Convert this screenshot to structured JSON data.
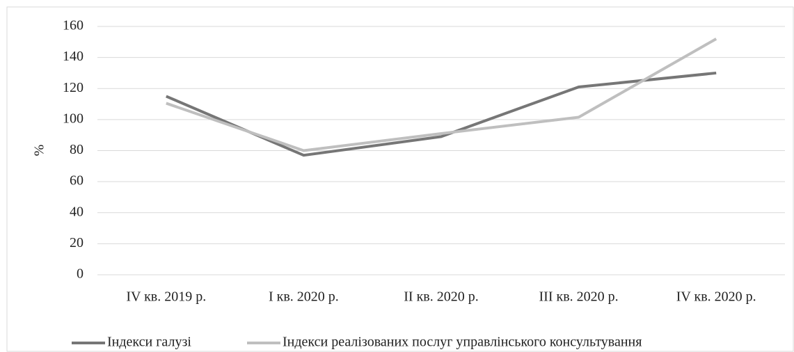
{
  "chart_data": {
    "type": "line",
    "y_label": "%",
    "categories": [
      "IV кв. 2019 р.",
      "I кв. 2020 р.",
      "II кв. 2020 р.",
      "III кв. 2020 р.",
      "IV кв. 2020 р."
    ],
    "series": [
      {
        "name": "Індекси галузі",
        "color": "#767676",
        "values": [
          115,
          77,
          89,
          121,
          130
        ]
      },
      {
        "name": "Індекси реалізованих послуг управлінського консультування",
        "color": "#bfbfbf",
        "values": [
          110.5,
          80,
          91,
          101.5,
          152
        ]
      }
    ],
    "ylim": [
      0,
      160
    ],
    "yticks": [
      0,
      20,
      40,
      60,
      80,
      100,
      120,
      140,
      160
    ],
    "grid": true,
    "legend": "bottom"
  }
}
